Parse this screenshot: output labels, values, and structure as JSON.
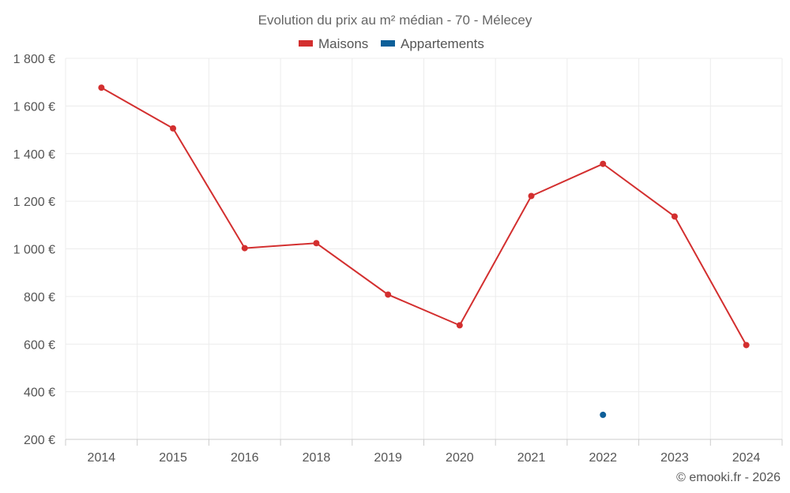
{
  "chart_data": {
    "type": "line",
    "title": "Evolution du prix au m² médian - 70 - Mélecey",
    "categories": [
      "2014",
      "2015",
      "2016",
      "2018",
      "2019",
      "2020",
      "2021",
      "2022",
      "2023",
      "2024"
    ],
    "series": [
      {
        "name": "Maisons",
        "color": "#d32f2f",
        "values": [
          1677,
          1506,
          1003,
          1024,
          808,
          679,
          1222,
          1357,
          1136,
          596
        ]
      },
      {
        "name": "Appartements",
        "color": "#0d5f99",
        "values": [
          null,
          null,
          null,
          null,
          null,
          null,
          null,
          303,
          null,
          null
        ]
      }
    ],
    "ylim": [
      200,
      1800
    ],
    "yticks": [
      200,
      400,
      600,
      800,
      1000,
      1200,
      1400,
      1600,
      1800
    ],
    "ytick_labels": [
      "200 €",
      "400 €",
      "600 €",
      "800 €",
      "1 000 €",
      "1 200 €",
      "1 400 €",
      "1 600 €",
      "1 800 €"
    ],
    "grid": true,
    "legend": "top-center",
    "xlabel": "",
    "ylabel": ""
  },
  "credit": "© emooki.fr - 2026"
}
